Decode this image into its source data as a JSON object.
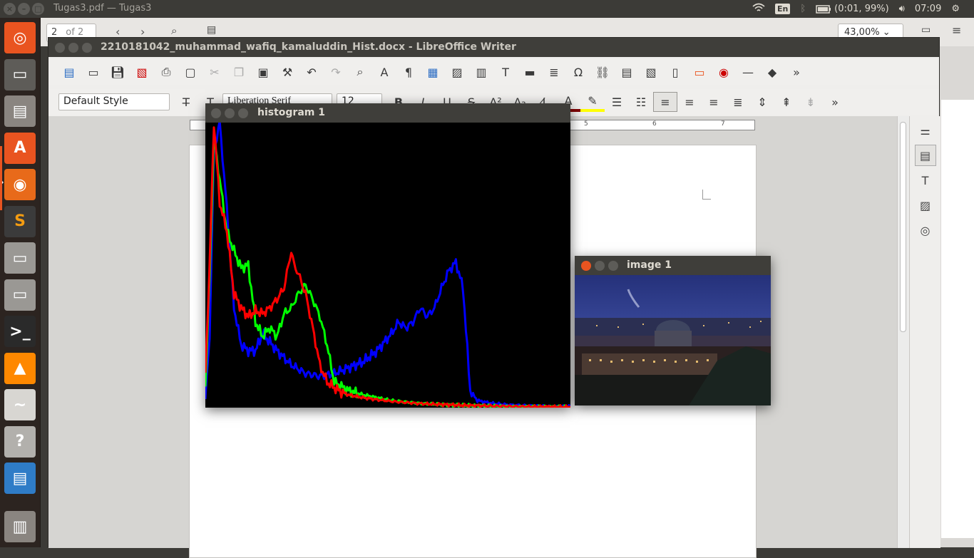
{
  "topbar": {
    "title": "Tugas3.pdf — Tugas3",
    "lang": "En",
    "battery": "(0:01, 99%)",
    "clock": "07:09"
  },
  "pdf": {
    "page_current": "2",
    "page_total": "of 2",
    "zoom": "43,00%"
  },
  "writer": {
    "title": "2210181042_muhammad_wafiq_kamaluddin_Hist.docx - LibreOffice Writer",
    "para_style": "Default Style",
    "font_name": "Liberation Serif",
    "font_size": "12"
  },
  "ruler": {
    "ticks": [
      "5",
      "6",
      "7"
    ]
  },
  "histogram_window": {
    "title": "histogram 1"
  },
  "image_window": {
    "title": "image 1"
  },
  "colors": {
    "accent": "#e95420",
    "launcher": "#2c2420",
    "titlebar": "#3f3e3a"
  },
  "launcher_icons": [
    "ubuntu-dash-icon",
    "workspace-switcher-icon",
    "file-manager-icon",
    "software-center-icon",
    "firefox-icon",
    "sublime-text-icon",
    "disk-drive-icon",
    "disk-drive-2-icon",
    "terminal-icon",
    "vlc-icon",
    "pdf-viewer-icon",
    "help-icon",
    "libreoffice-writer-icon",
    "trash-icon"
  ],
  "chart_data": {
    "type": "line",
    "title": "",
    "xlabel": "",
    "ylabel": "",
    "xlim": [
      0,
      255
    ],
    "ylim": [
      0,
      1
    ],
    "series": [
      {
        "color": "#0000ff",
        "x": [
          0,
          3,
          6,
          10,
          15,
          20,
          25,
          30,
          35,
          40,
          50,
          60,
          70,
          80,
          90,
          100,
          110,
          120,
          130,
          135,
          140,
          145,
          150,
          155,
          160,
          165,
          170,
          175,
          180,
          185,
          190,
          200,
          210,
          220,
          230,
          240,
          255
        ],
        "values": [
          0.03,
          0.25,
          0.9,
          1.0,
          0.7,
          0.35,
          0.22,
          0.2,
          0.2,
          0.26,
          0.2,
          0.15,
          0.12,
          0.11,
          0.12,
          0.14,
          0.16,
          0.2,
          0.26,
          0.3,
          0.28,
          0.3,
          0.35,
          0.32,
          0.35,
          0.42,
          0.48,
          0.51,
          0.42,
          0.06,
          0.025,
          0.015,
          0.01,
          0.008,
          0.006,
          0.004,
          0.003
        ]
      },
      {
        "color": "#00ff00",
        "x": [
          0,
          3,
          6,
          10,
          15,
          20,
          25,
          30,
          35,
          40,
          45,
          50,
          55,
          60,
          65,
          70,
          75,
          80,
          85,
          90,
          100,
          110,
          120,
          130,
          140,
          150,
          160,
          170,
          180,
          200,
          220,
          240,
          255
        ],
        "values": [
          0.08,
          0.45,
          0.95,
          0.8,
          0.62,
          0.55,
          0.49,
          0.5,
          0.3,
          0.25,
          0.28,
          0.25,
          0.33,
          0.35,
          0.4,
          0.43,
          0.38,
          0.32,
          0.22,
          0.09,
          0.06,
          0.045,
          0.035,
          0.025,
          0.02,
          0.015,
          0.012,
          0.01,
          0.008,
          0.006,
          0.004,
          0.003,
          0.002
        ]
      },
      {
        "color": "#ff0000",
        "x": [
          0,
          3,
          6,
          10,
          15,
          20,
          25,
          30,
          35,
          40,
          45,
          50,
          55,
          60,
          62,
          65,
          70,
          75,
          80,
          85,
          90,
          95,
          100,
          110,
          120,
          130,
          140,
          150,
          160,
          170,
          180,
          200,
          220,
          240,
          255
        ],
        "values": [
          0.12,
          0.5,
          1.0,
          0.72,
          0.62,
          0.4,
          0.35,
          0.32,
          0.34,
          0.33,
          0.35,
          0.38,
          0.42,
          0.55,
          0.5,
          0.47,
          0.4,
          0.28,
          0.15,
          0.09,
          0.07,
          0.055,
          0.045,
          0.035,
          0.028,
          0.022,
          0.018,
          0.014,
          0.012,
          0.01,
          0.008,
          0.006,
          0.004,
          0.003,
          0.002
        ]
      }
    ]
  }
}
